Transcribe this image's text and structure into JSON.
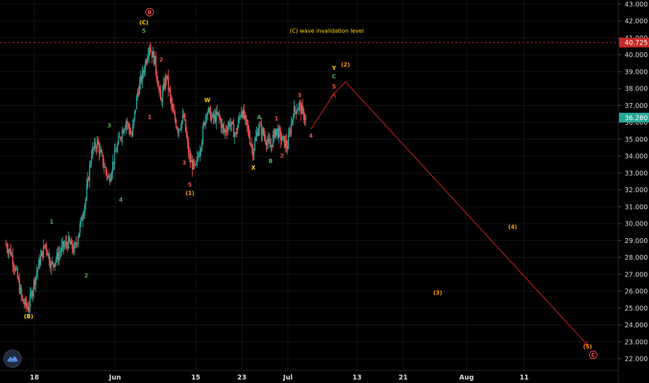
{
  "chart_data": {
    "type": "candlestick",
    "title": "",
    "xlabel": "",
    "ylabel": "",
    "ylim": [
      21.5,
      43.2
    ],
    "y_ticks": [
      22,
      23,
      24,
      25,
      26,
      27,
      28,
      29,
      30,
      31,
      32,
      33,
      34,
      35,
      36,
      37,
      38,
      39,
      40,
      41,
      42,
      43
    ],
    "y_tick_labels": [
      "22.000",
      "23.000",
      "24.000",
      "25.000",
      "26.000",
      "27.000",
      "28.000",
      "29.000",
      "30.000",
      "31.000",
      "32.000",
      "33.000",
      "34.000",
      "35.000",
      "36.000",
      "37.000",
      "38.000",
      "39.000",
      "40.000",
      "41.000",
      "42.000",
      "43.000"
    ],
    "x_domain": [
      "2020-05-13",
      "2020-08-23"
    ],
    "x_ticks": [
      {
        "label": "18",
        "date": "2020-05-18"
      },
      {
        "label": "Jun",
        "date": "2020-06-01"
      },
      {
        "label": "15",
        "date": "2020-06-15"
      },
      {
        "label": "23",
        "date": "2020-06-23"
      },
      {
        "label": "Jul",
        "date": "2020-07-01"
      },
      {
        "label": "13",
        "date": "2020-07-13"
      },
      {
        "label": "21",
        "date": "2020-07-21"
      },
      {
        "label": "Aug",
        "date": "2020-08-01"
      },
      {
        "label": "11",
        "date": "2020-08-11"
      }
    ],
    "colors": {
      "up": "#26a69a",
      "down": "#ef5350",
      "projection": "#b71c1c",
      "grid": "#141414",
      "invalidation": "#c62828",
      "current_price_box": "#26a69a",
      "invalidation_box": "#c62828"
    },
    "price_path": [
      [
        "2020-05-13",
        28.8
      ],
      [
        "2020-05-14",
        28.3
      ],
      [
        "2020-05-15",
        27.0
      ],
      [
        "2020-05-16",
        25.4
      ],
      [
        "2020-05-17",
        25.0
      ],
      [
        "2020-05-18",
        26.5
      ],
      [
        "2020-05-19",
        27.8
      ],
      [
        "2020-05-20",
        28.8
      ],
      [
        "2020-05-21",
        27.5
      ],
      [
        "2020-05-22",
        28.0
      ],
      [
        "2020-05-23",
        28.6
      ],
      [
        "2020-05-24",
        28.9
      ],
      [
        "2020-05-25",
        28.4
      ],
      [
        "2020-05-26",
        29.8
      ],
      [
        "2020-05-27",
        31.5
      ],
      [
        "2020-05-28",
        34.2
      ],
      [
        "2020-05-29",
        34.8
      ],
      [
        "2020-05-30",
        33.6
      ],
      [
        "2020-05-31",
        32.6
      ],
      [
        "2020-06-01",
        34.0
      ],
      [
        "2020-06-02",
        35.2
      ],
      [
        "2020-06-03",
        36.1
      ],
      [
        "2020-06-04",
        35.2
      ],
      [
        "2020-06-05",
        37.8
      ],
      [
        "2020-06-06",
        39.0
      ],
      [
        "2020-06-07",
        40.6
      ],
      [
        "2020-06-08",
        39.6
      ],
      [
        "2020-06-09",
        37.2
      ],
      [
        "2020-06-10",
        38.8
      ],
      [
        "2020-06-11",
        36.7
      ],
      [
        "2020-06-12",
        35.6
      ],
      [
        "2020-06-13",
        36.3
      ],
      [
        "2020-06-14",
        33.8
      ],
      [
        "2020-06-15",
        33.2
      ],
      [
        "2020-06-16",
        34.8
      ],
      [
        "2020-06-17",
        36.8
      ],
      [
        "2020-06-18",
        36.2
      ],
      [
        "2020-06-19",
        36.4
      ],
      [
        "2020-06-20",
        35.4
      ],
      [
        "2020-06-21",
        36.0
      ],
      [
        "2020-06-22",
        35.2
      ],
      [
        "2020-06-23",
        36.8
      ],
      [
        "2020-06-24",
        35.7
      ],
      [
        "2020-06-25",
        34.3
      ],
      [
        "2020-06-26",
        35.8
      ],
      [
        "2020-06-27",
        35.2
      ],
      [
        "2020-06-28",
        34.5
      ],
      [
        "2020-06-29",
        35.6
      ],
      [
        "2020-06-30",
        35.0
      ],
      [
        "2020-07-01",
        34.6
      ],
      [
        "2020-07-02",
        36.6
      ],
      [
        "2020-07-03",
        37.0
      ],
      [
        "2020-07-04",
        36.3
      ]
    ],
    "projection_path": [
      [
        "2020-07-05",
        35.6
      ],
      [
        "2020-07-09",
        37.7
      ],
      [
        "2020-07-11",
        38.4
      ],
      [
        "2020-08-22",
        22.8
      ]
    ],
    "invalidation_level": 40.725,
    "invalidation_text": "(C) wave invalidation level",
    "invalidation_price_label": "40.725",
    "current_price_label": "36.280",
    "current_price": 36.28,
    "wave_labels": [
      {
        "text": "(B)",
        "date": "2020-05-17",
        "y": 24.4,
        "color": "#ffd700"
      },
      {
        "text": "1",
        "date": "2020-05-21",
        "y": 30.0,
        "color": "#4caf50"
      },
      {
        "text": "2",
        "date": "2020-05-27",
        "y": 26.8,
        "color": "#4caf50"
      },
      {
        "text": "3",
        "date": "2020-05-31",
        "y": 35.7,
        "color": "#4caf50"
      },
      {
        "text": "4",
        "date": "2020-06-02",
        "y": 31.3,
        "color": "#4caf50"
      },
      {
        "text": "5",
        "date": "2020-06-06",
        "y": 41.3,
        "color": "#4caf50"
      },
      {
        "text": "(C)",
        "date": "2020-06-06",
        "y": 41.8,
        "color": "#ffd700"
      },
      {
        "text": "B",
        "date": "2020-06-07",
        "y": 42.4,
        "color": "#ef5350"
      },
      {
        "text": "1",
        "date": "2020-06-07",
        "y": 36.2,
        "color": "#ef5350"
      },
      {
        "text": "2",
        "date": "2020-06-09",
        "y": 39.6,
        "color": "#ef5350"
      },
      {
        "text": "3",
        "date": "2020-06-13",
        "y": 33.5,
        "color": "#ef5350"
      },
      {
        "text": "4",
        "date": "2020-06-13",
        "y": 36.3,
        "color": "#ef5350"
      },
      {
        "text": "5",
        "date": "2020-06-14",
        "y": 32.2,
        "color": "#ef5350"
      },
      {
        "text": "(1)",
        "date": "2020-06-14",
        "y": 31.7,
        "color": "#ff9800"
      },
      {
        "text": "W",
        "date": "2020-06-17",
        "y": 37.2,
        "color": "#ffd700"
      },
      {
        "text": "A",
        "date": "2020-06-26",
        "y": 36.2,
        "color": "#4caf50"
      },
      {
        "text": "X",
        "date": "2020-06-25",
        "y": 33.2,
        "color": "#ffd700"
      },
      {
        "text": "B",
        "date": "2020-06-28",
        "y": 33.6,
        "color": "#4caf50"
      },
      {
        "text": "1",
        "date": "2020-06-29",
        "y": 36.1,
        "color": "#ef5350"
      },
      {
        "text": "2",
        "date": "2020-06-30",
        "y": 33.9,
        "color": "#ef5350"
      },
      {
        "text": "3",
        "date": "2020-07-03",
        "y": 37.5,
        "color": "#ef5350"
      },
      {
        "text": "4",
        "date": "2020-07-05",
        "y": 35.1,
        "color": "#ef5350"
      },
      {
        "text": "5",
        "date": "2020-07-09",
        "y": 38.0,
        "color": "#ef5350"
      },
      {
        "text": "C",
        "date": "2020-07-09",
        "y": 38.6,
        "color": "#4caf50"
      },
      {
        "text": "Y",
        "date": "2020-07-09",
        "y": 39.1,
        "color": "#ffd700"
      },
      {
        "text": "(2)",
        "date": "2020-07-11",
        "y": 39.3,
        "color": "#ff9800"
      },
      {
        "text": "(3)",
        "date": "2020-07-27",
        "y": 25.8,
        "color": "#ff9800"
      },
      {
        "text": "(4)",
        "date": "2020-08-09",
        "y": 29.7,
        "color": "#ff9800"
      },
      {
        "text": "(5)",
        "date": "2020-08-22",
        "y": 22.6,
        "color": "#ff9800"
      },
      {
        "text": "C",
        "date": "2020-08-23",
        "y": 22.1,
        "color": "#ef5350"
      }
    ]
  },
  "icons": {
    "logo": "tradingview-logo-icon"
  }
}
